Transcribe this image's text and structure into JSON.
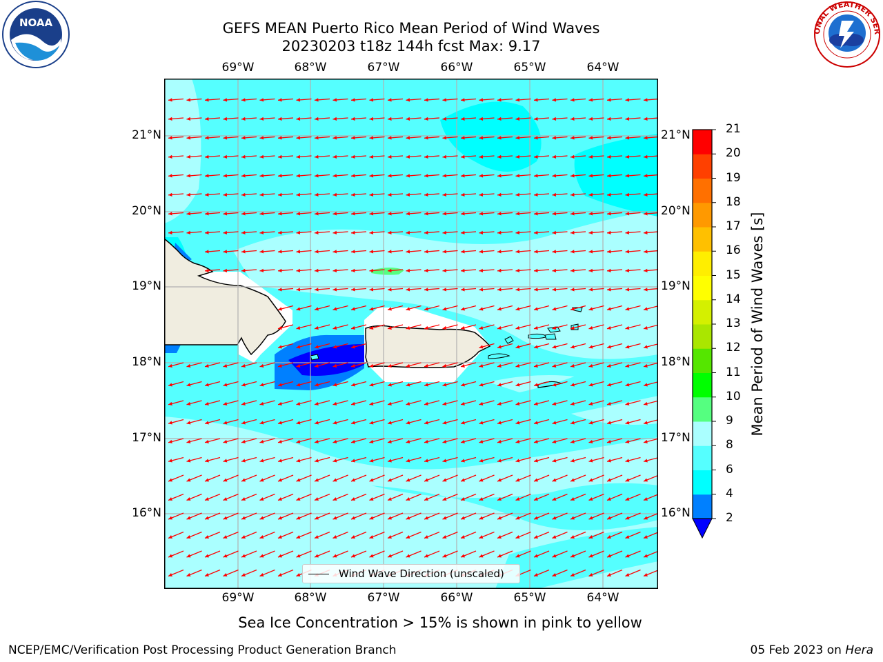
{
  "title": {
    "line1": "GEFS MEAN Puerto Rico Mean Period of Wind Waves",
    "line2": "20230203 t18z 144h fcst   Max: 9.17"
  },
  "map": {
    "lon_labels": [
      "69°W",
      "68°W",
      "67°W",
      "66°W",
      "65°W",
      "64°W"
    ],
    "lat_labels": [
      "21°N",
      "20°N",
      "19°N",
      "18°N",
      "17°N",
      "16°N"
    ],
    "legend_label": "Wind Wave Direction (unscaled)",
    "colors": {
      "ocean_light": "#aaffff",
      "ocean_mid": "#55ffff",
      "ocean_deep": "#00ffff",
      "low": "#0080ff",
      "lowest": "#0000ff",
      "land": "#f0ede0",
      "arrow": "#ff0000"
    }
  },
  "colorbar": {
    "label": "Mean Period of Wind Waves [s]",
    "ticks": [
      "2",
      "4",
      "6",
      "8",
      "9",
      "10",
      "11",
      "12",
      "13",
      "14",
      "15",
      "16",
      "17",
      "18",
      "19",
      "20",
      "21"
    ],
    "colors": [
      "#0080ff",
      "#00ffff",
      "#55ffff",
      "#aaffff",
      "#55ff80",
      "#00ff00",
      "#55e600",
      "#aae600",
      "#d4f000",
      "#ffff00",
      "#ffee00",
      "#ffc000",
      "#ff9900",
      "#ff7000",
      "#ff4000",
      "#ff0000"
    ],
    "under_color": "#0000ff"
  },
  "footnote": "Sea Ice Concentration > 15% is shown in pink to yellow",
  "footer": {
    "org": "NCEP/EMC/Verification Post Processing Product Generation Branch",
    "date": "05 Feb 2023 on",
    "machine": "Hera"
  },
  "logos": {
    "left": "NOAA",
    "right": "NATIONAL WEATHER SERVICE"
  }
}
